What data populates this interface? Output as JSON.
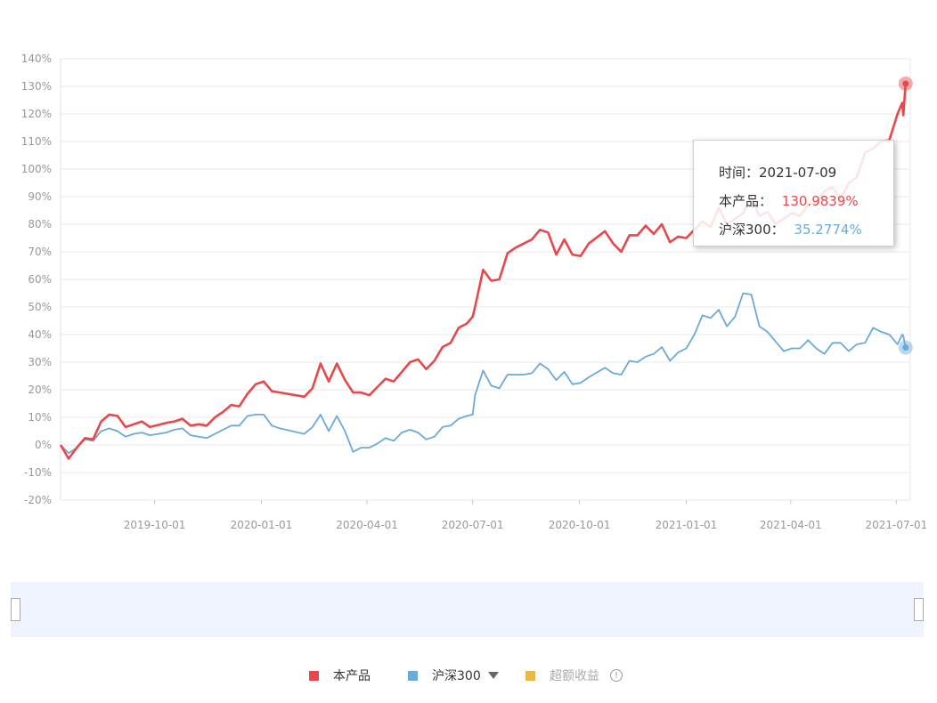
{
  "chart_data": {
    "type": "line",
    "yticks": [
      "140%",
      "130%",
      "120%",
      "110%",
      "100%",
      "90%",
      "80%",
      "70%",
      "60%",
      "50%",
      "40%",
      "30%",
      "20%",
      "10%",
      "0%",
      "-10%",
      "-20%"
    ],
    "xticks": [
      "2019-10-01",
      "2020-01-01",
      "2020-04-01",
      "2020-07-01",
      "2020-10-01",
      "2021-01-01",
      "2021-04-01",
      "2021-07-01"
    ],
    "ylim": [
      -20,
      140
    ],
    "xlim": [
      "2019-07-12",
      "2021-07-13"
    ],
    "series": [
      {
        "name": "本产品",
        "color": "#e8484b",
        "points": [
          [
            "2019-07-12",
            0
          ],
          [
            "2019-07-19",
            -5
          ],
          [
            "2019-07-26",
            -1
          ],
          [
            "2019-08-02",
            2.5
          ],
          [
            "2019-08-09",
            2
          ],
          [
            "2019-08-16",
            8.5
          ],
          [
            "2019-08-23",
            11
          ],
          [
            "2019-08-30",
            10.5
          ],
          [
            "2019-09-06",
            6.5
          ],
          [
            "2019-09-13",
            7.5
          ],
          [
            "2019-09-20",
            8.5
          ],
          [
            "2019-09-27",
            6.5
          ],
          [
            "2019-10-11",
            8
          ],
          [
            "2019-10-18",
            8.5
          ],
          [
            "2019-10-25",
            9.5
          ],
          [
            "2019-11-01",
            7
          ],
          [
            "2019-11-08",
            7.5
          ],
          [
            "2019-11-15",
            7
          ],
          [
            "2019-11-22",
            10
          ],
          [
            "2019-11-29",
            12
          ],
          [
            "2019-12-06",
            14.5
          ],
          [
            "2019-12-13",
            14
          ],
          [
            "2019-12-20",
            18.5
          ],
          [
            "2019-12-27",
            22
          ],
          [
            "2020-01-03",
            23
          ],
          [
            "2020-01-10",
            19.5
          ],
          [
            "2020-01-17",
            19
          ],
          [
            "2020-02-07",
            17.5
          ],
          [
            "2020-02-14",
            20.5
          ],
          [
            "2020-02-21",
            29.5
          ],
          [
            "2020-02-28",
            23
          ],
          [
            "2020-03-06",
            29.5
          ],
          [
            "2020-03-13",
            23.5
          ],
          [
            "2020-03-20",
            19
          ],
          [
            "2020-03-27",
            19
          ],
          [
            "2020-04-03",
            18
          ],
          [
            "2020-04-10",
            21
          ],
          [
            "2020-04-17",
            24
          ],
          [
            "2020-04-24",
            23
          ],
          [
            "2020-05-01",
            26.5
          ],
          [
            "2020-05-08",
            30
          ],
          [
            "2020-05-15",
            31
          ],
          [
            "2020-05-22",
            27.5
          ],
          [
            "2020-05-29",
            30.5
          ],
          [
            "2020-06-05",
            35.5
          ],
          [
            "2020-06-12",
            37
          ],
          [
            "2020-06-19",
            42.5
          ],
          [
            "2020-06-26",
            44
          ],
          [
            "2020-07-01",
            46.5
          ],
          [
            "2020-07-03",
            50
          ],
          [
            "2020-07-10",
            63.5
          ],
          [
            "2020-07-17",
            59.5
          ],
          [
            "2020-07-24",
            60
          ],
          [
            "2020-07-31",
            69.5
          ],
          [
            "2020-08-07",
            71.5
          ],
          [
            "2020-08-14",
            73
          ],
          [
            "2020-08-21",
            74.5
          ],
          [
            "2020-08-28",
            78
          ],
          [
            "2020-09-04",
            77
          ],
          [
            "2020-09-11",
            69
          ],
          [
            "2020-09-18",
            74.5
          ],
          [
            "2020-09-25",
            69
          ],
          [
            "2020-10-02",
            68.5
          ],
          [
            "2020-10-09",
            73
          ],
          [
            "2020-10-23",
            77.5
          ],
          [
            "2020-10-30",
            73
          ],
          [
            "2020-11-06",
            70
          ],
          [
            "2020-11-13",
            76
          ],
          [
            "2020-11-20",
            76
          ],
          [
            "2020-11-27",
            79.5
          ],
          [
            "2020-12-04",
            76.5
          ],
          [
            "2020-12-11",
            80
          ],
          [
            "2020-12-18",
            73.5
          ],
          [
            "2020-12-25",
            75.5
          ],
          [
            "2021-01-01",
            75
          ],
          [
            "2021-01-08",
            78
          ],
          [
            "2021-01-15",
            81
          ],
          [
            "2021-01-22",
            79
          ],
          [
            "2021-01-29",
            86
          ],
          [
            "2021-02-05",
            80
          ],
          [
            "2021-02-12",
            82
          ],
          [
            "2021-02-19",
            84
          ],
          [
            "2021-02-26",
            90
          ],
          [
            "2021-03-05",
            83
          ],
          [
            "2021-03-12",
            84.5
          ],
          [
            "2021-03-19",
            80
          ],
          [
            "2021-03-26",
            82
          ],
          [
            "2021-04-02",
            84
          ],
          [
            "2021-04-09",
            83
          ],
          [
            "2021-04-16",
            87
          ],
          [
            "2021-04-23",
            88
          ],
          [
            "2021-04-30",
            92
          ],
          [
            "2021-05-07",
            93.5
          ],
          [
            "2021-05-14",
            89
          ],
          [
            "2021-05-21",
            95
          ],
          [
            "2021-05-28",
            97
          ],
          [
            "2021-06-04",
            106
          ],
          [
            "2021-06-11",
            107.5
          ],
          [
            "2021-06-18",
            110
          ],
          [
            "2021-06-25",
            110.5
          ],
          [
            "2021-07-02",
            120
          ],
          [
            "2021-07-06",
            124
          ],
          [
            "2021-07-07",
            119.5
          ],
          [
            "2021-07-09",
            130.9839
          ]
        ]
      },
      {
        "name": "沪深300",
        "color": "#6baad9",
        "points": [
          [
            "2019-07-12",
            0
          ],
          [
            "2019-07-19",
            -3
          ],
          [
            "2019-07-26",
            -1
          ],
          [
            "2019-08-02",
            2
          ],
          [
            "2019-08-09",
            1.5
          ],
          [
            "2019-08-16",
            5
          ],
          [
            "2019-08-23",
            6
          ],
          [
            "2019-08-30",
            5
          ],
          [
            "2019-09-06",
            3
          ],
          [
            "2019-09-13",
            4
          ],
          [
            "2019-09-20",
            4.5
          ],
          [
            "2019-09-27",
            3.5
          ],
          [
            "2019-10-11",
            4.5
          ],
          [
            "2019-10-18",
            5.5
          ],
          [
            "2019-10-25",
            6
          ],
          [
            "2019-11-01",
            3.5
          ],
          [
            "2019-11-08",
            3
          ],
          [
            "2019-11-15",
            2.5
          ],
          [
            "2019-11-22",
            4
          ],
          [
            "2019-11-29",
            5.5
          ],
          [
            "2019-12-06",
            7
          ],
          [
            "2019-12-13",
            7
          ],
          [
            "2019-12-20",
            10.5
          ],
          [
            "2019-12-27",
            11
          ],
          [
            "2020-01-03",
            11
          ],
          [
            "2020-01-10",
            7
          ],
          [
            "2020-01-17",
            6
          ],
          [
            "2020-02-07",
            4
          ],
          [
            "2020-02-14",
            6.5
          ],
          [
            "2020-02-21",
            11
          ],
          [
            "2020-02-28",
            5
          ],
          [
            "2020-03-06",
            10.5
          ],
          [
            "2020-03-13",
            5
          ],
          [
            "2020-03-20",
            -2.5
          ],
          [
            "2020-03-27",
            -1
          ],
          [
            "2020-04-03",
            -1
          ],
          [
            "2020-04-10",
            0.5
          ],
          [
            "2020-04-17",
            2.5
          ],
          [
            "2020-04-24",
            1.5
          ],
          [
            "2020-05-01",
            4.5
          ],
          [
            "2020-05-08",
            5.5
          ],
          [
            "2020-05-15",
            4.5
          ],
          [
            "2020-05-22",
            2
          ],
          [
            "2020-05-29",
            3
          ],
          [
            "2020-06-05",
            6.5
          ],
          [
            "2020-06-12",
            7
          ],
          [
            "2020-06-19",
            9.5
          ],
          [
            "2020-06-26",
            10.5
          ],
          [
            "2020-07-01",
            11
          ],
          [
            "2020-07-03",
            18
          ],
          [
            "2020-07-10",
            27
          ],
          [
            "2020-07-17",
            21.5
          ],
          [
            "2020-07-24",
            20.5
          ],
          [
            "2020-07-31",
            25.5
          ],
          [
            "2020-08-07",
            25.5
          ],
          [
            "2020-08-14",
            25.5
          ],
          [
            "2020-08-21",
            26
          ],
          [
            "2020-08-28",
            29.5
          ],
          [
            "2020-09-04",
            27.5
          ],
          [
            "2020-09-11",
            23.5
          ],
          [
            "2020-09-18",
            26.5
          ],
          [
            "2020-09-25",
            22
          ],
          [
            "2020-10-02",
            22.5
          ],
          [
            "2020-10-09",
            24.5
          ],
          [
            "2020-10-23",
            28
          ],
          [
            "2020-10-30",
            26
          ],
          [
            "2020-11-06",
            25.5
          ],
          [
            "2020-11-13",
            30.5
          ],
          [
            "2020-11-20",
            30
          ],
          [
            "2020-11-27",
            32
          ],
          [
            "2020-12-04",
            33
          ],
          [
            "2020-12-11",
            35.5
          ],
          [
            "2020-12-18",
            30.5
          ],
          [
            "2020-12-25",
            33.5
          ],
          [
            "2021-01-01",
            35
          ],
          [
            "2021-01-08",
            40
          ],
          [
            "2021-01-15",
            47
          ],
          [
            "2021-01-22",
            46
          ],
          [
            "2021-01-29",
            49
          ],
          [
            "2021-02-05",
            43
          ],
          [
            "2021-02-12",
            46.5
          ],
          [
            "2021-02-19",
            55
          ],
          [
            "2021-02-26",
            54.5
          ],
          [
            "2021-03-05",
            43
          ],
          [
            "2021-03-12",
            41
          ],
          [
            "2021-03-19",
            37.5
          ],
          [
            "2021-03-26",
            34
          ],
          [
            "2021-04-02",
            35
          ],
          [
            "2021-04-09",
            35
          ],
          [
            "2021-04-16",
            38
          ],
          [
            "2021-04-23",
            35
          ],
          [
            "2021-04-30",
            33
          ],
          [
            "2021-05-07",
            37
          ],
          [
            "2021-05-14",
            37
          ],
          [
            "2021-05-21",
            34
          ],
          [
            "2021-05-28",
            36.5
          ],
          [
            "2021-06-04",
            37
          ],
          [
            "2021-06-11",
            42.5
          ],
          [
            "2021-06-18",
            41
          ],
          [
            "2021-06-25",
            40
          ],
          [
            "2021-07-02",
            36.5
          ],
          [
            "2021-07-06",
            40
          ],
          [
            "2021-07-07",
            39.5
          ],
          [
            "2021-07-09",
            35.2774
          ]
        ]
      }
    ]
  },
  "tooltip": {
    "time_label": "时间：",
    "time_value": "2021-07-09",
    "product_label": "本产品：",
    "product_value": "130.9839%",
    "index_label": "沪深300：",
    "index_value": "35.2774%"
  },
  "legend": {
    "items": [
      {
        "label": "本产品",
        "color": "#e8484b"
      },
      {
        "label": "沪深300",
        "color": "#6baad9",
        "icon": "caret-down-icon"
      },
      {
        "label": "超额收益",
        "color": "#e6b94a",
        "icon": "info-icon",
        "muted": true
      }
    ],
    "info_symbol": "!"
  },
  "colors": {
    "product": "#e8484b",
    "index": "#6baad9",
    "excess": "#e6b94a",
    "zoom_background": "#eef3fd"
  }
}
